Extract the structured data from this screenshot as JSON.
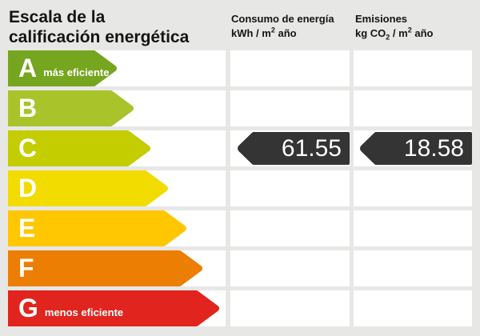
{
  "title": "Escala de la\ncalificación energética",
  "columns": {
    "consumo": {
      "title": "Consumo de energía",
      "unit_pre": "kWh / m",
      "unit_sup": "2",
      "unit_post": " año"
    },
    "emisiones": {
      "title": "Emisiones",
      "unit_pre": "kg CO",
      "unit_sub": "2",
      "unit_mid": " / m",
      "unit_sup": "2",
      "unit_post": " año"
    }
  },
  "scale": [
    {
      "letter": "A",
      "label": "más eficiente",
      "color": "#76a51f",
      "arrow_width": 136
    },
    {
      "letter": "B",
      "label": "",
      "color": "#a9c32a",
      "arrow_width": 157
    },
    {
      "letter": "C",
      "label": "",
      "color": "#c3cd00",
      "arrow_width": 178
    },
    {
      "letter": "D",
      "label": "",
      "color": "#f2dc00",
      "arrow_width": 200
    },
    {
      "letter": "E",
      "label": "",
      "color": "#ffc700",
      "arrow_width": 223
    },
    {
      "letter": "F",
      "label": "",
      "color": "#ec7e04",
      "arrow_width": 243
    },
    {
      "letter": "G",
      "label": "menos eficiente",
      "color": "#e2241e",
      "arrow_width": 264
    }
  ],
  "rating": {
    "letter": "C",
    "consumo_value": "61.55",
    "emisiones_value": "18.58",
    "arrow_color": "#343434"
  },
  "chart_data": {
    "type": "bar",
    "title": "Escala de la calificación energética",
    "categories": [
      "A",
      "B",
      "C",
      "D",
      "E",
      "F",
      "G"
    ],
    "category_notes": {
      "A": "más eficiente",
      "G": "menos eficiente"
    },
    "bar_colors": [
      "#76a51f",
      "#a9c32a",
      "#c3cd00",
      "#f2dc00",
      "#ffc700",
      "#ec7e04",
      "#e2241e"
    ],
    "bar_relative_lengths": [
      136,
      157,
      178,
      200,
      223,
      243,
      264
    ],
    "columns": [
      "Consumo de energía kWh/m² año",
      "Emisiones kg CO₂/m² año"
    ],
    "rating": "C",
    "values": {
      "consumo_kwh_m2_ano": 61.55,
      "emisiones_kg_co2_m2_ano": 18.58
    }
  }
}
